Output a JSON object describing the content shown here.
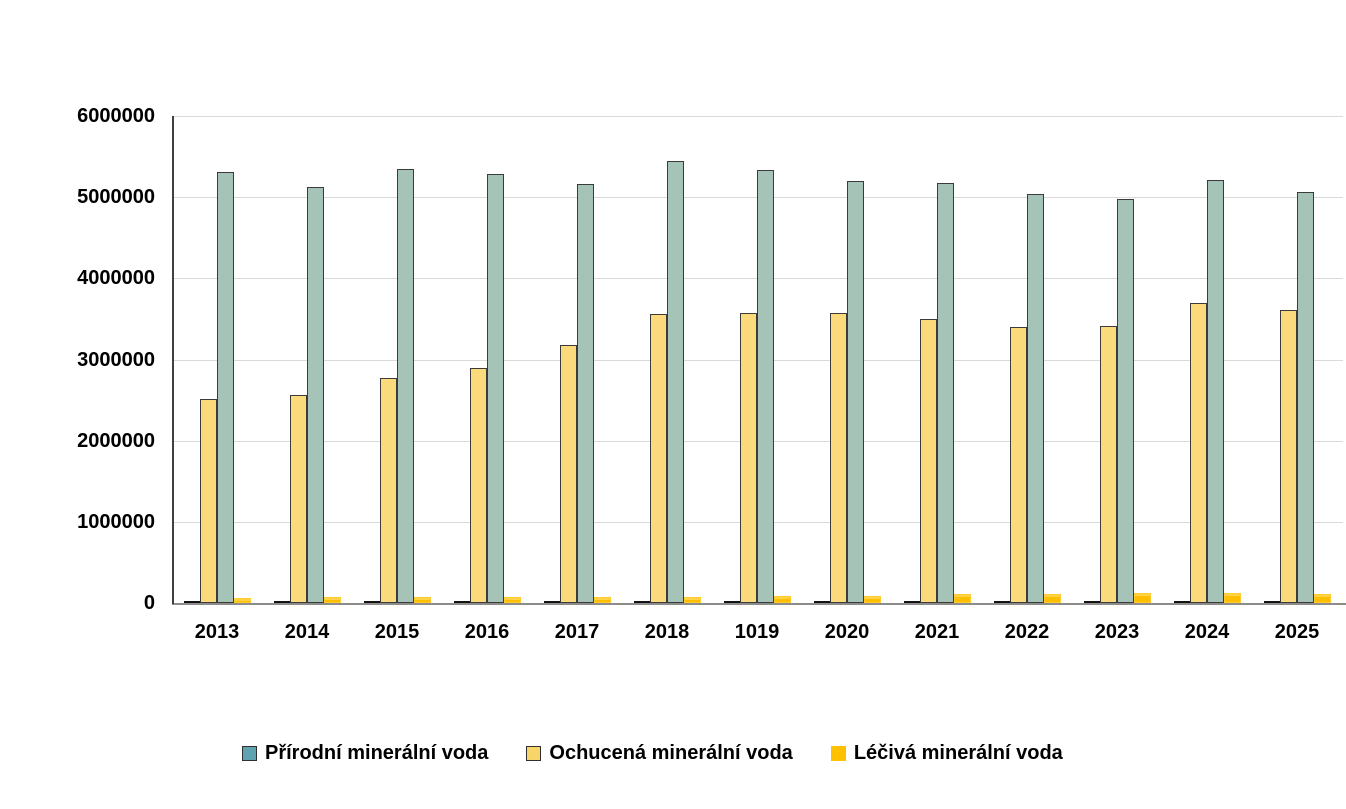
{
  "chart_data": {
    "type": "bar",
    "title": "",
    "xlabel": "",
    "ylabel": "",
    "categories": [
      "2013",
      "2014",
      "2015",
      "2016",
      "2017",
      "2018",
      "1019",
      "2020",
      "2021",
      "2022",
      "2023",
      "2024",
      "2025"
    ],
    "series": [
      {
        "name": "Přírodní minerální voda",
        "bar_color": "#a5c3b6",
        "border_color": "#3b3b3b",
        "legend_color": "#5fa3b0",
        "legend_border": "#2f2f2f",
        "values": [
          5310000,
          5130000,
          5350000,
          5290000,
          5160000,
          5450000,
          5340000,
          5200000,
          5170000,
          5040000,
          4980000,
          5210000,
          5060000
        ]
      },
      {
        "name": "Ochucená minerální voda",
        "bar_color": "#fbda7c",
        "border_color": "#3b3b3b",
        "legend_color": "#f7d569",
        "legend_border": "#2f2f2f",
        "values": [
          2510000,
          2560000,
          2770000,
          2900000,
          3180000,
          3560000,
          3570000,
          3570000,
          3500000,
          3400000,
          3410000,
          3700000,
          3610000
        ]
      },
      {
        "name": "Léčivá minerální voda",
        "bar_color": "#ffbe00",
        "border_color": "#ffcb2e",
        "legend_color": "#ffc000",
        "legend_border": "#ffc000",
        "values": [
          65000,
          70000,
          72000,
          70000,
          75000,
          80000,
          85000,
          90000,
          115000,
          105000,
          120000,
          118000,
          105000
        ]
      }
    ],
    "ylim": [
      0,
      6000000
    ],
    "yticks": [
      0,
      1000000,
      2000000,
      3000000,
      4000000,
      5000000,
      6000000
    ],
    "grid": "horizontal",
    "legend_position": "bottom",
    "notes": "Each category group shows a flat black zero-height stub in the first bar slot; group bar order left-to-right is stub, Ochucená, Přírodní, Léčivá."
  },
  "colors": {
    "background": "#ffffff",
    "gridline": "#dadada",
    "y_axis_line": "#404040",
    "x_axis_line": "#8c8c8c",
    "stub": "#141414",
    "text": "#000000"
  }
}
